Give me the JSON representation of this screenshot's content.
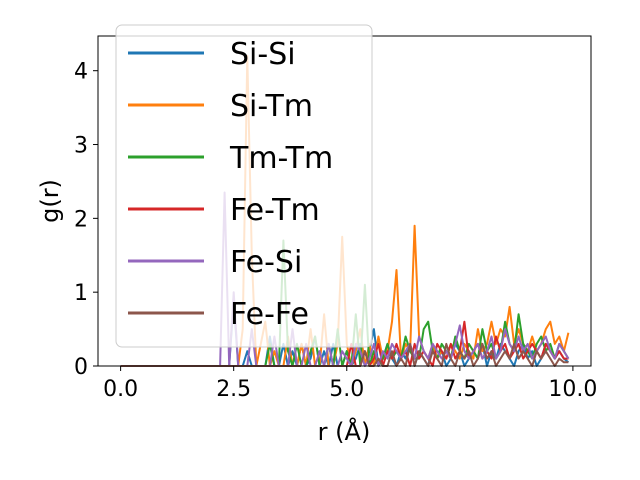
{
  "chart_data": {
    "type": "line",
    "title": "",
    "xlabel": "r (Å)",
    "ylabel": "g(r)",
    "xlim": [
      -0.5,
      10.4
    ],
    "ylim": [
      0,
      4.47
    ],
    "xticks": [
      "0.0",
      "2.5",
      "5.0",
      "7.5",
      "10.0"
    ],
    "xtick_values": [
      0,
      2.5,
      5,
      7.5,
      10
    ],
    "yticks": [
      "0",
      "1",
      "2",
      "3",
      "4"
    ],
    "ytick_values": [
      0,
      1,
      2,
      3,
      4
    ],
    "grid": false,
    "legend_position": "upper-left",
    "x": [
      0.0,
      0.1,
      0.2,
      0.3,
      0.4,
      0.5,
      0.6,
      0.7,
      0.8,
      0.9,
      1.0,
      1.1,
      1.2,
      1.3,
      1.4,
      1.5,
      1.6,
      1.7,
      1.8,
      1.9,
      2.0,
      2.1,
      2.2,
      2.3,
      2.4,
      2.5,
      2.6,
      2.7,
      2.8,
      2.9,
      3.0,
      3.1,
      3.2,
      3.3,
      3.4,
      3.5,
      3.6,
      3.7,
      3.8,
      3.9,
      4.0,
      4.1,
      4.2,
      4.3,
      4.4,
      4.5,
      4.6,
      4.7,
      4.8,
      4.9,
      5.0,
      5.1,
      5.2,
      5.3,
      5.4,
      5.5,
      5.6,
      5.7,
      5.8,
      5.9,
      6.0,
      6.1,
      6.2,
      6.3,
      6.4,
      6.5,
      6.6,
      6.7,
      6.8,
      6.9,
      7.0,
      7.1,
      7.2,
      7.3,
      7.4,
      7.5,
      7.6,
      7.7,
      7.8,
      7.9,
      8.0,
      8.1,
      8.2,
      8.3,
      8.4,
      8.5,
      8.6,
      8.7,
      8.8,
      8.9,
      9.0,
      9.1,
      9.2,
      9.3,
      9.4,
      9.5,
      9.6,
      9.7,
      9.8,
      9.9
    ],
    "series": [
      {
        "name": "Si-Si",
        "color": "#1f77b4",
        "values": [
          0,
          0,
          0,
          0,
          0,
          0,
          0,
          0,
          0,
          0,
          0,
          0,
          0,
          0,
          0,
          0,
          0,
          0,
          0,
          0,
          0,
          0,
          0,
          0,
          0,
          0.9,
          0,
          0,
          0.2,
          0,
          0,
          0,
          0,
          0.4,
          0,
          0,
          0.3,
          0,
          0.2,
          0,
          0.3,
          0,
          0.1,
          0.4,
          0,
          0.2,
          0,
          0.3,
          0,
          0,
          0.2,
          0,
          0.1,
          0.3,
          0,
          0.2,
          0.5,
          0,
          0.1,
          0.3,
          0.1,
          0,
          0.2,
          0.1,
          0.3,
          0,
          0.2,
          0.1,
          0,
          0.3,
          0.1,
          0.2,
          0,
          0.1,
          0.3,
          0.2,
          0,
          0.1,
          0.2,
          0.1,
          0.3,
          0,
          0.2,
          0.1,
          0.3,
          0.2,
          0.1,
          0,
          0.2,
          0.3,
          0.1,
          0.2,
          0,
          0.1,
          0.3,
          0.2,
          0.1,
          0.2,
          0.1,
          0.05
        ]
      },
      {
        "name": "Si-Tm",
        "color": "#ff7f0e",
        "values": [
          0,
          0,
          0,
          0,
          0,
          0,
          0,
          0,
          0,
          0,
          0,
          0,
          0,
          0,
          0,
          0,
          0,
          0,
          0,
          0,
          0,
          0,
          0,
          0,
          0,
          0,
          0,
          0.5,
          4.2,
          1.5,
          0,
          0.3,
          0.6,
          0,
          0.2,
          0,
          0,
          0.4,
          0,
          0,
          0.3,
          0,
          0.5,
          0,
          0,
          0.7,
          0,
          0,
          0.3,
          1.75,
          0.3,
          0,
          0.2,
          0.5,
          0,
          0.3,
          0,
          0.4,
          0.1,
          0.2,
          0.6,
          1.3,
          0.1,
          0.3,
          0.2,
          1.9,
          0.4,
          0.2,
          0.1,
          0.3,
          0.1,
          0.2,
          0.1,
          0.3,
          0.2,
          0.1,
          0.3,
          0.2,
          0.1,
          0.5,
          0.2,
          0.3,
          0.6,
          0.3,
          0.5,
          0.4,
          0.8,
          0.3,
          0.5,
          0.3,
          0.2,
          0.4,
          0.2,
          0.3,
          0.5,
          0.6,
          0.3,
          0.4,
          0.2,
          0.45
        ]
      },
      {
        "name": "Tm-Tm",
        "color": "#2ca02c",
        "values": [
          0,
          0,
          0,
          0,
          0,
          0,
          0,
          0,
          0,
          0,
          0,
          0,
          0,
          0,
          0,
          0,
          0,
          0,
          0,
          0,
          0,
          0,
          0,
          0,
          0,
          0,
          0,
          0,
          0,
          0,
          0,
          0,
          0,
          0.3,
          0,
          0,
          1.7,
          0.2,
          0,
          0.3,
          0,
          0,
          0.2,
          0.4,
          0,
          0,
          0.3,
          0,
          0.5,
          0,
          0.2,
          0,
          0.7,
          0,
          1.1,
          0,
          0.2,
          0,
          0.1,
          0.3,
          0.1,
          0.2,
          0.1,
          0.4,
          0.2,
          0.1,
          0.1,
          0.5,
          0.6,
          0.2,
          0.1,
          0.3,
          0.2,
          0.1,
          0.4,
          0.2,
          0.1,
          0.3,
          0.2,
          0.1,
          0.5,
          0.2,
          0.3,
          0.1,
          0.2,
          0.6,
          0.3,
          0.2,
          0.7,
          0.3,
          0.2,
          0.1,
          0.3,
          0.4,
          0.2,
          0.3,
          0.1,
          0.3,
          0.2,
          0.1
        ]
      },
      {
        "name": "Fe-Tm",
        "color": "#d62728",
        "values": [
          0,
          0,
          0,
          0,
          0,
          0,
          0,
          0,
          0,
          0,
          0,
          0,
          0,
          0,
          0,
          0,
          0,
          0,
          0,
          0,
          0,
          0,
          0,
          0,
          0,
          0,
          0,
          0,
          0,
          0,
          0,
          0,
          0,
          0,
          0,
          0,
          0,
          0,
          0,
          0,
          0,
          0,
          0,
          0,
          0,
          0,
          0,
          0,
          0,
          0,
          0,
          0.3,
          0,
          0,
          0.2,
          0,
          0.1,
          0.3,
          0,
          0.2,
          0.1,
          0.3,
          0.1,
          0.2,
          0,
          0.3,
          0.1,
          0.2,
          0.1,
          0,
          0.3,
          0.2,
          0.1,
          0.3,
          0.1,
          0.2,
          0.6,
          0.1,
          0.2,
          0.3,
          0.1,
          0.2,
          0.1,
          0.4,
          0.2,
          0.3,
          0.1,
          0.2,
          0.3,
          0.1,
          0.2,
          0.3,
          0.2,
          0.1,
          0.3,
          0.2,
          0.1,
          0.2,
          0.1,
          0.1
        ]
      },
      {
        "name": "Fe-Si",
        "color": "#9467bd",
        "values": [
          0,
          0,
          0,
          0,
          0,
          0,
          0,
          0,
          0,
          0,
          0,
          0,
          0,
          0,
          0,
          0,
          0,
          0,
          0,
          0,
          0,
          0,
          0,
          2.35,
          0,
          1.0,
          0,
          0,
          0,
          0.5,
          0,
          0,
          0,
          0,
          0.4,
          0,
          0,
          0,
          0.5,
          0,
          0,
          0.3,
          0,
          0,
          0.2,
          0,
          0.3,
          0,
          0,
          0.2,
          0.1,
          0,
          0.3,
          0.2,
          0,
          0.1,
          0.3,
          0,
          0.2,
          0.1,
          0.3,
          0.2,
          0.1,
          0.2,
          0.3,
          0.1,
          0.4,
          0.2,
          0.1,
          0.3,
          0.2,
          0.1,
          0.2,
          0.1,
          0.3,
          0.55,
          0.2,
          0.1,
          0.2,
          0.3,
          0.1,
          0.2,
          0.4,
          0.1,
          0.2,
          0.5,
          0.3,
          0.2,
          0.4,
          0.2,
          0.3,
          0.1,
          0.2,
          0.3,
          0.4,
          0.2,
          0.1,
          0.3,
          0.2,
          0.1
        ]
      },
      {
        "name": "Fe-Fe",
        "color": "#8c564b",
        "values": [
          0,
          0,
          0,
          0,
          0,
          0,
          0,
          0,
          0,
          0,
          0,
          0,
          0,
          0,
          0,
          0,
          0,
          0,
          0,
          0,
          0,
          0,
          0,
          0,
          0,
          0,
          0,
          0,
          0,
          0,
          0,
          0,
          0,
          0,
          0,
          0,
          0,
          0,
          0,
          0,
          0,
          0,
          0,
          0,
          0,
          0,
          0,
          0,
          0,
          0,
          0,
          0,
          0,
          0,
          0.2,
          0,
          0,
          0.1,
          0,
          0,
          0.2,
          0,
          0.1,
          0,
          0.3,
          0,
          0.2,
          0.1,
          0,
          0.2,
          0.1,
          0,
          0.3,
          0.1,
          0,
          0.2,
          0.1,
          0.2,
          0,
          0.1,
          0.3,
          0.1,
          0.2,
          0,
          0.1,
          0.2,
          0.1,
          0.3,
          0.1,
          0.2,
          0.1,
          0,
          0.2,
          0.1,
          0.2,
          0.1,
          0,
          0.1,
          0.05,
          0.05
        ]
      }
    ]
  }
}
